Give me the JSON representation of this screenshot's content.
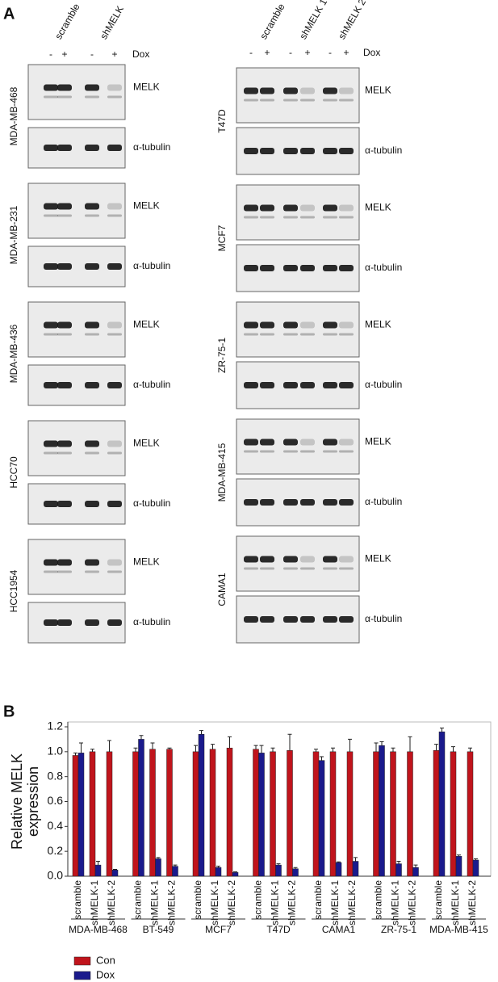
{
  "panel_a": {
    "label": "A",
    "left": {
      "groups": [
        "scramble",
        "shMELK"
      ],
      "dox_signs": [
        "-",
        "+",
        "-",
        "+"
      ],
      "dox_label": "Dox",
      "cell_lines": [
        {
          "name": "MDA-MB-468",
          "bands": [
            "MELK",
            "α-tubulin"
          ]
        },
        {
          "name": "MDA-MB-231",
          "bands": [
            "MELK",
            "α-tubulin"
          ]
        },
        {
          "name": "MDA-MB-436",
          "bands": [
            "MELK",
            "α-tubulin"
          ]
        },
        {
          "name": "HCC70",
          "bands": [
            "MELK",
            "α-tubulin"
          ]
        },
        {
          "name": "HCC1954",
          "bands": [
            "MELK",
            "α-tubulin"
          ]
        }
      ]
    },
    "right": {
      "groups": [
        "scramble",
        "shMELK 1",
        "shMELK 2"
      ],
      "dox_signs": [
        "-",
        "+",
        "-",
        "+",
        "-",
        "+"
      ],
      "dox_label": "Dox",
      "cell_lines": [
        {
          "name": "T47D",
          "bands": [
            "MELK",
            "α-tubulin"
          ]
        },
        {
          "name": "MCF7",
          "bands": [
            "MELK",
            "α-tubulin"
          ]
        },
        {
          "name": "ZR-75-1",
          "bands": [
            "MELK",
            "α-tubulin"
          ]
        },
        {
          "name": "MDA-MB-415",
          "bands": [
            "MELK",
            "α-tubulin"
          ]
        },
        {
          "name": "CAMA1",
          "bands": [
            "MELK",
            "α-tubulin"
          ]
        }
      ]
    }
  },
  "panel_b_label": "B",
  "chart_data": {
    "type": "bar",
    "ylabel": [
      "Relative MELK",
      "expression"
    ],
    "ylim": [
      0,
      1.2
    ],
    "yticks": [
      {
        "value": 0,
        "label": "0.0"
      },
      {
        "value": 0.2,
        "label": "0.2"
      },
      {
        "value": 0.4,
        "label": "0.4"
      },
      {
        "value": 0.6,
        "label": "0.6"
      },
      {
        "value": 0.8,
        "label": "0.8"
      },
      {
        "value": 1,
        "label": "1.0"
      },
      {
        "value": 1.2,
        "label": "1.2"
      }
    ],
    "groups": [
      "MDA-MB-468",
      "BT-549",
      "MCF7",
      "T47D",
      "CAMA1",
      "ZR-75-1",
      "MDA-MB-415"
    ],
    "categories": [
      "scramble",
      "shMELK-1",
      "shMELK-2",
      "scramble",
      "shMELK-1",
      "shMELK-2",
      "scramble",
      "shMELK-1",
      "shMELK-2",
      "scramble",
      "shMELK-1",
      "shMELK-2",
      "scramble",
      "shMELK-1",
      "shMELK-2",
      "scramble",
      "shMELK-1",
      "shMELK-2",
      "scramble",
      "shMELK-1",
      "shMELK-2"
    ],
    "series": [
      {
        "name": "Con",
        "color": "#c0141c",
        "values": [
          0.97,
          1.0,
          1.0,
          1.0,
          1.02,
          1.02,
          1.0,
          1.02,
          1.03,
          1.02,
          1.0,
          1.01,
          1.0,
          1.0,
          1.0,
          1.0,
          1.0,
          1.0,
          1.01,
          1.0,
          1.0
        ],
        "errors": [
          0.02,
          0.02,
          0.09,
          0.03,
          0.05,
          0.01,
          0.05,
          0.04,
          0.09,
          0.03,
          0.03,
          0.13,
          0.02,
          0.03,
          0.1,
          0.07,
          0.03,
          0.12,
          0.05,
          0.04,
          0.03
        ]
      },
      {
        "name": "Dox",
        "color": "#1a1a8c",
        "values": [
          0.99,
          0.09,
          0.05,
          1.1,
          0.14,
          0.08,
          1.14,
          0.07,
          0.03,
          0.99,
          0.09,
          0.06,
          0.93,
          0.11,
          0.12,
          1.05,
          0.1,
          0.07,
          1.16,
          0.16,
          0.13
        ],
        "errors": [
          0.08,
          0.03,
          0.005,
          0.03,
          0.01,
          0.01,
          0.03,
          0.01,
          0.005,
          0.06,
          0.01,
          0.01,
          0.03,
          0.005,
          0.03,
          0.03,
          0.02,
          0.02,
          0.03,
          0.01,
          0.01
        ]
      }
    ],
    "legend": "bottom-left"
  }
}
